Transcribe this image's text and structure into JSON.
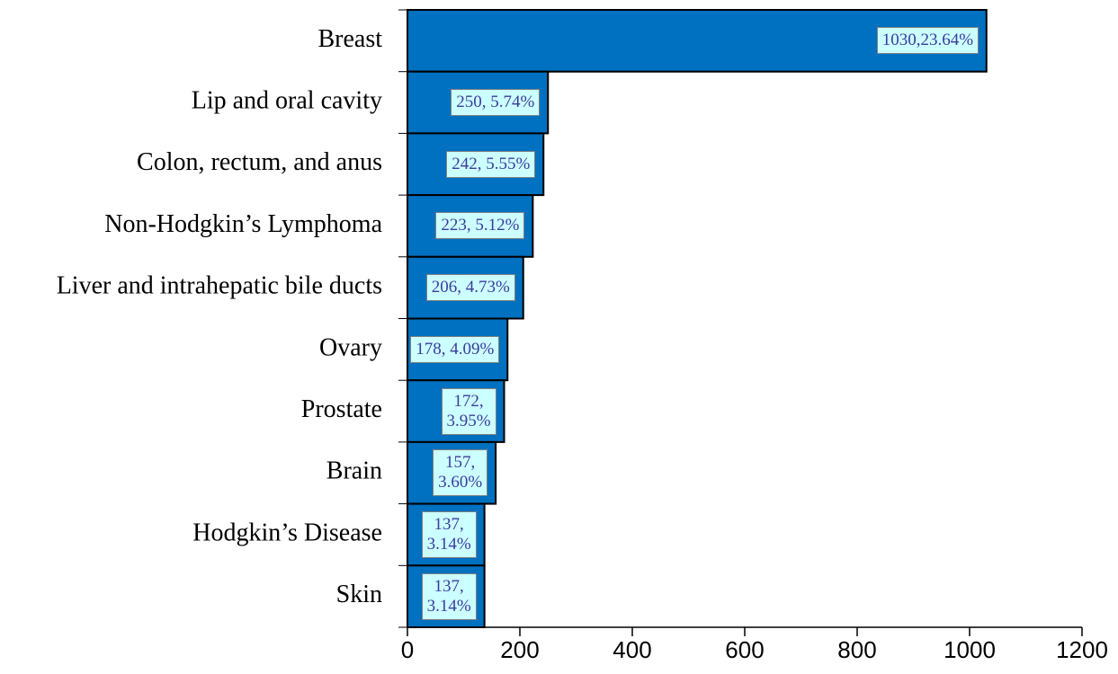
{
  "chart_data": {
    "type": "barh",
    "categories": [
      "Breast",
      "Lip and oral cavity",
      "Colon, rectum, and anus",
      "Non-Hodgkin’s Lymphoma",
      "Liver and intrahepatic bile ducts",
      "Ovary",
      "Prostate",
      "Brain",
      "Hodgkin’s Disease",
      "Skin"
    ],
    "values": [
      1030,
      250,
      242,
      223,
      206,
      178,
      172,
      157,
      137,
      137
    ],
    "value_labels": [
      "1030,23.64%",
      "250, 5.74%",
      "242, 5.55%",
      "223, 5.12%",
      "206, 4.73%",
      "178, 4.09%",
      "172,\n3.95%",
      "157,\n3.60%",
      "137,\n3.14%",
      "137,\n3.14%"
    ],
    "color": "#0070c0",
    "xlim": [
      0,
      1200
    ],
    "xticks": [
      0,
      200,
      400,
      600,
      800,
      1000,
      1200
    ]
  }
}
